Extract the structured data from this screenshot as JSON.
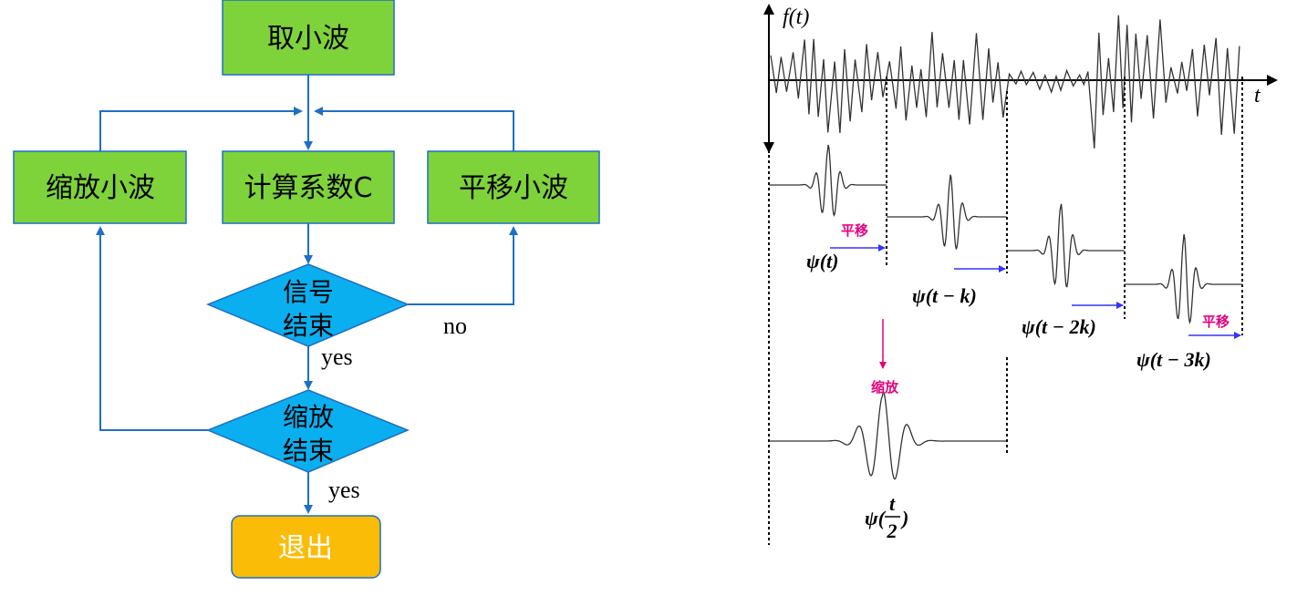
{
  "flowchart": {
    "take_wavelet": "取小波",
    "scale_wavelet": "缩放小波",
    "compute_coef": "计算系数C",
    "shift_wavelet": "平移小波",
    "signal_end_line1": "信号",
    "signal_end_line2": "结束",
    "scale_end_line1": "缩放",
    "scale_end_line2": "结束",
    "yes_label_1": "yes",
    "no_label": "no",
    "yes_label_2": "yes",
    "exit": "退出",
    "colors": {
      "process_fill": "#7ed33a",
      "decision_fill": "#0aaff0",
      "exit_fill": "#fbbc07",
      "arrow": "#1f6fc5"
    }
  },
  "wavelet_figure": {
    "signal_axis_label": "f(t)",
    "time_axis_label": "t",
    "shift_label_1": "平移",
    "shift_label_2": "平移",
    "scale_label": "缩放",
    "psi_t": "ψ(t)",
    "psi_t_k": "ψ(t − k)",
    "psi_t_2k": "ψ(t − 2k)",
    "psi_t_3k": "ψ(t − 3k)",
    "psi_half_prefix": "ψ(",
    "psi_half_num": "t",
    "psi_half_den": "2",
    "psi_half_suffix": ")",
    "colors": {
      "shift_arrow": "#3333ff",
      "scale_arrow": "#e6007e"
    }
  }
}
